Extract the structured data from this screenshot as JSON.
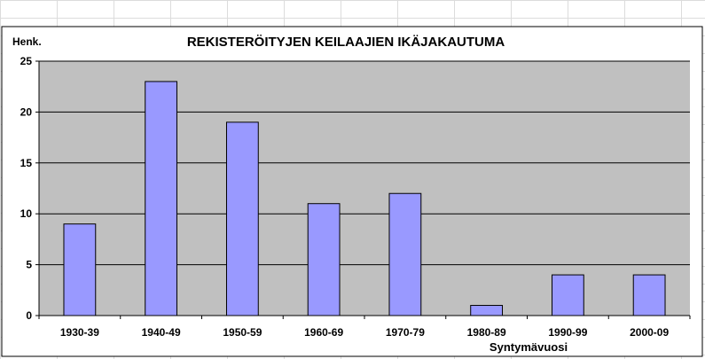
{
  "chart_data": {
    "type": "bar",
    "title": "REKISTERÖITYJEN KEILAAJIEN IKÄJAKAUTUMA",
    "ylabel": "Henk.",
    "xlabel": "Syntymävuosi",
    "categories": [
      "1930-39",
      "1940-49",
      "1950-59",
      "1960-69",
      "1970-79",
      "1980-89",
      "1990-99",
      "2000-09"
    ],
    "values": [
      9,
      23,
      19,
      11,
      12,
      1,
      4,
      4
    ],
    "ylim": [
      0,
      25
    ],
    "yticks": [
      0,
      5,
      10,
      15,
      20,
      25
    ],
    "grid": true,
    "legend": "none",
    "colors": {
      "plot_background": "#c0c0c0",
      "bar_fill": "#9999ff",
      "bar_stroke": "#000000",
      "gridline": "#000000"
    }
  }
}
